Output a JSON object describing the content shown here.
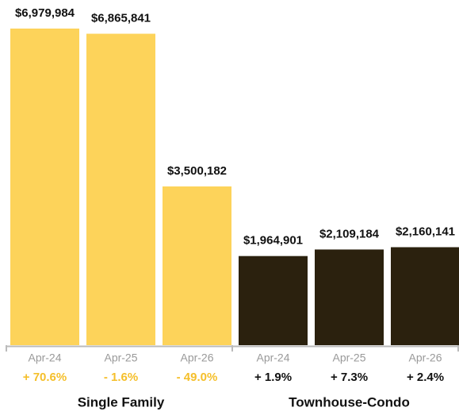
{
  "chart_data": {
    "type": "bar",
    "categories": [
      "Apr-24",
      "Apr-25",
      "Apr-26"
    ],
    "series": [
      {
        "name": "Single Family",
        "color": "#fdd35a",
        "change_color": "#f5bf2a",
        "values": [
          6979984,
          6865841,
          3500182
        ],
        "value_labels": [
          "$6,979,984",
          "$6,865,841",
          "$3,500,182"
        ],
        "changes": [
          "+ 70.6%",
          "- 1.6%",
          "- 49.0%"
        ]
      },
      {
        "name": "Townhouse-Condo",
        "color": "#2b210e",
        "change_color": "#111111",
        "values": [
          1964901,
          2109184,
          2160141
        ],
        "value_labels": [
          "$1,964,901",
          "$2,109,184",
          "$2,160,141"
        ],
        "changes": [
          "+ 1.9%",
          "+ 7.3%",
          "+ 2.4%"
        ]
      }
    ]
  }
}
